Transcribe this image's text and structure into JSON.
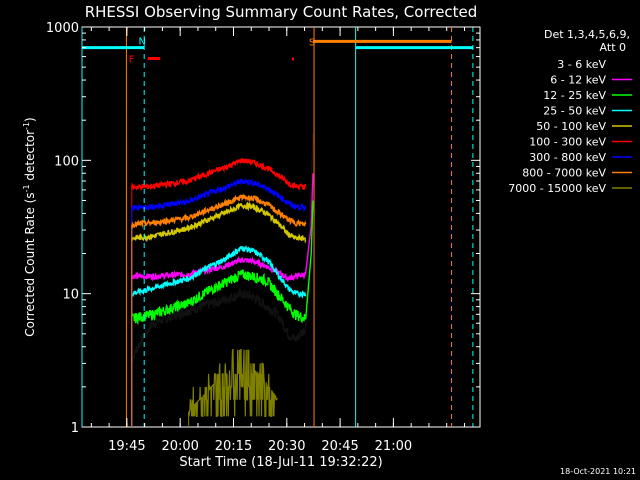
{
  "chart_data": {
    "type": "line",
    "title": "RHESSI Observing Summary Count Rates, Corrected",
    "xlabel": "Start Time (18-Jul-11 19:32:22)",
    "ylabel": "Corrected Count Rate (s",
    "ylabel_sup1": "-1",
    "ylabel_mid": " detector",
    "ylabel_sup2": "-1",
    "ylabel_end": ")",
    "y_scale": "log",
    "ylim": [
      1,
      1000
    ],
    "xlim_minutes_after_start": [
      0,
      112
    ],
    "x_ticks": [
      "19:45",
      "20:00",
      "20:15",
      "20:30",
      "20:45",
      "21:00"
    ],
    "x_tick_minutes": [
      12.63,
      27.63,
      42.63,
      57.63,
      72.63,
      87.63
    ],
    "y_ticks": [
      "1",
      "10",
      "100",
      "1000"
    ],
    "y_tick_values": [
      1,
      10,
      100,
      1000
    ],
    "detector_info": "Det 1,3,4,5,6,9,",
    "attenuator_info": "Att 0",
    "timestamp": "18-Oct-2021 10:21",
    "flag_markers": [
      {
        "label": "F",
        "color": "#ff0000",
        "minute": 14.5
      },
      {
        "label": "N",
        "color": "#00ffff",
        "minute": 17.5
      },
      {
        "label": "S",
        "color": "#ff8000",
        "minute": 65.3
      }
    ],
    "legend": [
      {
        "label": "3 - 6 keV",
        "color": "#000000"
      },
      {
        "label": "6 - 12 keV",
        "color": "#ff00ff"
      },
      {
        "label": "12 - 25 keV",
        "color": "#00ff00"
      },
      {
        "label": "25 - 50 keV",
        "color": "#00ffff"
      },
      {
        "label": "50 - 100 keV",
        "color": "#d4c800"
      },
      {
        "label": "100 - 300 keV",
        "color": "#ff0000"
      },
      {
        "label": "300 - 800 keV",
        "color": "#0000ff"
      },
      {
        "label": "800 - 7000 keV",
        "color": "#ff8000"
      },
      {
        "label": "7000 - 15000 keV",
        "color": "#808000"
      }
    ],
    "series": [
      {
        "name": "3 - 6 keV",
        "color": "#000000",
        "x_minutes": [
          14,
          20,
          30,
          40,
          45,
          48,
          52,
          55,
          58,
          60,
          63
        ],
        "y": [
          3.2,
          6.0,
          7.5,
          9.0,
          10.0,
          9.5,
          8.0,
          7.0,
          5.0,
          4.5,
          5.5
        ]
      },
      {
        "name": "6 - 12 keV",
        "color": "#ff00ff",
        "x_minutes": [
          14,
          20,
          30,
          40,
          45,
          48,
          52,
          55,
          58,
          60,
          63
        ],
        "y": [
          13.5,
          13.5,
          14.0,
          16.0,
          18.0,
          17.5,
          16.0,
          14.5,
          13.0,
          13.5,
          14.0
        ]
      },
      {
        "name": "12 - 25 keV",
        "color": "#00ff00",
        "x_minutes": [
          14,
          20,
          30,
          40,
          45,
          48,
          52,
          55,
          58,
          60,
          63
        ],
        "y": [
          6.5,
          7.0,
          8.5,
          12.0,
          14.0,
          13.5,
          12.5,
          10.0,
          8.0,
          7.0,
          6.5
        ]
      },
      {
        "name": "25 - 50 keV",
        "color": "#00ffff",
        "x_minutes": [
          14,
          20,
          30,
          40,
          45,
          48,
          52,
          55,
          58,
          60,
          63
        ],
        "y": [
          10.0,
          11.0,
          13.0,
          18.0,
          22.0,
          21.0,
          18.0,
          14.0,
          11.0,
          10.0,
          10.0
        ]
      },
      {
        "name": "50 - 100 keV",
        "color": "#d4c800",
        "x_minutes": [
          14,
          20,
          30,
          40,
          45,
          48,
          52,
          55,
          58,
          60,
          63
        ],
        "y": [
          26.0,
          27.0,
          31.0,
          40.0,
          46.0,
          45.0,
          40.0,
          34.0,
          28.0,
          26.0,
          26.0
        ]
      },
      {
        "name": "100 - 300 keV",
        "color": "#ff0000",
        "x_minutes": [
          14,
          20,
          30,
          40,
          45,
          48,
          52,
          55,
          58,
          60,
          63
        ],
        "y": [
          63.0,
          64.0,
          70.0,
          88.0,
          100.0,
          97.0,
          88.0,
          78.0,
          68.0,
          64.0,
          63.0
        ]
      },
      {
        "name": "300 - 800 keV",
        "color": "#0000ff",
        "x_minutes": [
          14,
          20,
          30,
          40,
          45,
          48,
          52,
          55,
          58,
          60,
          63
        ],
        "y": [
          44.0,
          45.0,
          49.0,
          62.0,
          70.0,
          68.0,
          62.0,
          55.0,
          48.0,
          45.0,
          44.0
        ]
      },
      {
        "name": "800 - 7000 keV",
        "color": "#ff8000",
        "x_minutes": [
          14,
          20,
          30,
          40,
          45,
          48,
          52,
          55,
          58,
          60,
          63
        ],
        "y": [
          33.0,
          34.0,
          37.0,
          47.0,
          53.0,
          52.0,
          47.0,
          41.0,
          36.0,
          34.0,
          33.0
        ]
      },
      {
        "name": "7000 - 15000 keV",
        "color": "#808000",
        "x_minutes": [
          30,
          35,
          40,
          45,
          50,
          55
        ],
        "y": [
          1.3,
          1.8,
          2.5,
          3.0,
          2.5,
          1.6
        ]
      }
    ],
    "spike_end_minute": 65,
    "spike_peak_rates": [
      160,
      80,
      50
    ],
    "flag_bars": [
      {
        "color": "#00ffff",
        "level": 700,
        "segments": [
          [
            0,
            17.5
          ],
          [
            77,
            110
          ]
        ]
      },
      {
        "color": "#ff8000",
        "level": 780,
        "segments": [
          [
            65,
            104
          ]
        ]
      },
      {
        "color": "#ff0000",
        "level": 580,
        "segments": [
          [
            18.5,
            22
          ]
        ]
      }
    ],
    "vertical_markers": [
      {
        "color": "#00ffff",
        "minute": 0,
        "style": "solid"
      },
      {
        "color": "#ff8000",
        "minute": 12.5,
        "style": "solid"
      },
      {
        "color": "#00ffff",
        "minute": 17.5,
        "style": "dashed"
      },
      {
        "color": "#ff8000",
        "minute": 65.3,
        "style": "solid"
      },
      {
        "color": "#00ffff",
        "minute": 77,
        "style": "solid"
      },
      {
        "color": "#ff8000",
        "minute": 104,
        "style": "dashed"
      },
      {
        "color": "#00ffff",
        "minute": 110,
        "style": "dashed"
      }
    ]
  }
}
